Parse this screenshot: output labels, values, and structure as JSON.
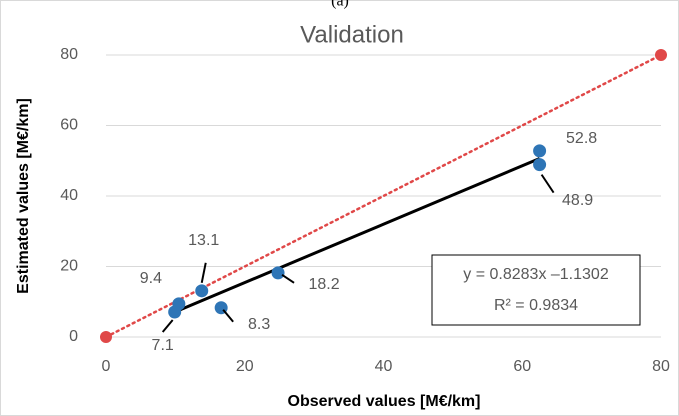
{
  "chart_data": {
    "type": "scatter",
    "panel_label": "(a)",
    "title": "Validation",
    "x_label": "Observed values [M€/km]",
    "y_label": "Estimated values [M€/km]",
    "xlim": [
      0,
      80
    ],
    "xticks": [
      0,
      20,
      40,
      60,
      80
    ],
    "ylim": [
      0,
      80
    ],
    "yticks": [
      0,
      20,
      40,
      60,
      80
    ],
    "grid": true,
    "series": [
      {
        "color": "#2e75b6",
        "x": [
          62.5,
          62.5,
          24.8,
          13.8,
          10.5,
          16.6,
          9.9
        ],
        "values": [
          52.8,
          48.9,
          18.2,
          13.1,
          9.4,
          8.3,
          7.1
        ]
      }
    ],
    "trendline": {
      "color": "#000000",
      "x": [
        9.5,
        62.5
      ],
      "values": [
        6.74,
        50.64
      ]
    },
    "reference_line": {
      "color": "#e04848",
      "x": [
        0,
        80
      ],
      "values": [
        0,
        80
      ]
    },
    "equation": [
      "y = 0.8283x –1.1302",
      "R² = 0.9834"
    ]
  }
}
